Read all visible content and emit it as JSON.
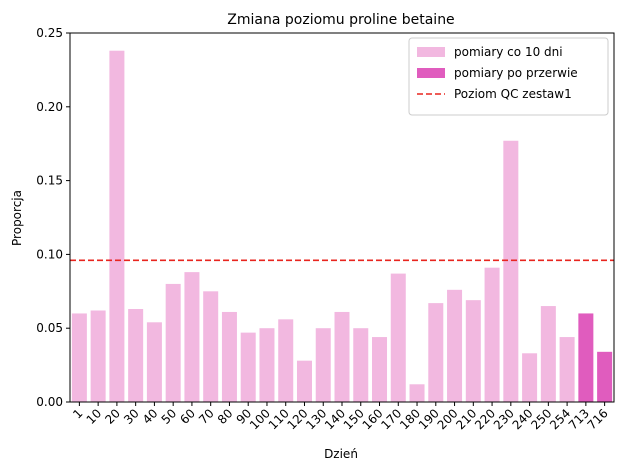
{
  "chart_data": {
    "type": "bar",
    "title": "Zmiana poziomu proline betaine",
    "xlabel": "Dzień",
    "ylabel": "Proporcja",
    "ylim": [
      0,
      0.25
    ],
    "yticks": [
      "0.00",
      "0.05",
      "0.10",
      "0.15",
      "0.20",
      "0.25"
    ],
    "categories": [
      "1",
      "10",
      "20",
      "30",
      "40",
      "50",
      "60",
      "70",
      "80",
      "90",
      "100",
      "110",
      "120",
      "130",
      "140",
      "150",
      "160",
      "170",
      "180",
      "190",
      "200",
      "210",
      "220",
      "230",
      "240",
      "250",
      "254",
      "713",
      "716"
    ],
    "values": [
      0.06,
      0.062,
      0.238,
      0.063,
      0.054,
      0.08,
      0.088,
      0.075,
      0.061,
      0.047,
      0.05,
      0.056,
      0.028,
      0.05,
      0.061,
      0.05,
      0.044,
      0.087,
      0.012,
      0.067,
      0.076,
      0.069,
      0.091,
      0.177,
      0.033,
      0.065,
      0.044,
      0.06,
      0.034
    ],
    "groups": [
      "regular",
      "regular",
      "regular",
      "regular",
      "regular",
      "regular",
      "regular",
      "regular",
      "regular",
      "regular",
      "regular",
      "regular",
      "regular",
      "regular",
      "regular",
      "regular",
      "regular",
      "regular",
      "regular",
      "regular",
      "regular",
      "regular",
      "regular",
      "regular",
      "regular",
      "regular",
      "regular",
      "break",
      "break"
    ],
    "series": [
      {
        "name": "pomiary co 10 dni",
        "group": "regular",
        "color": "#f2b8e0"
      },
      {
        "name": "pomiary po przerwie",
        "group": "break",
        "color": "#e05cbe"
      }
    ],
    "reference_line": {
      "name": "Poziom QC zestaw1",
      "value": 0.096,
      "color": "#e8251f",
      "style": "dashed"
    },
    "legend_position": "top-right",
    "grid": false
  }
}
